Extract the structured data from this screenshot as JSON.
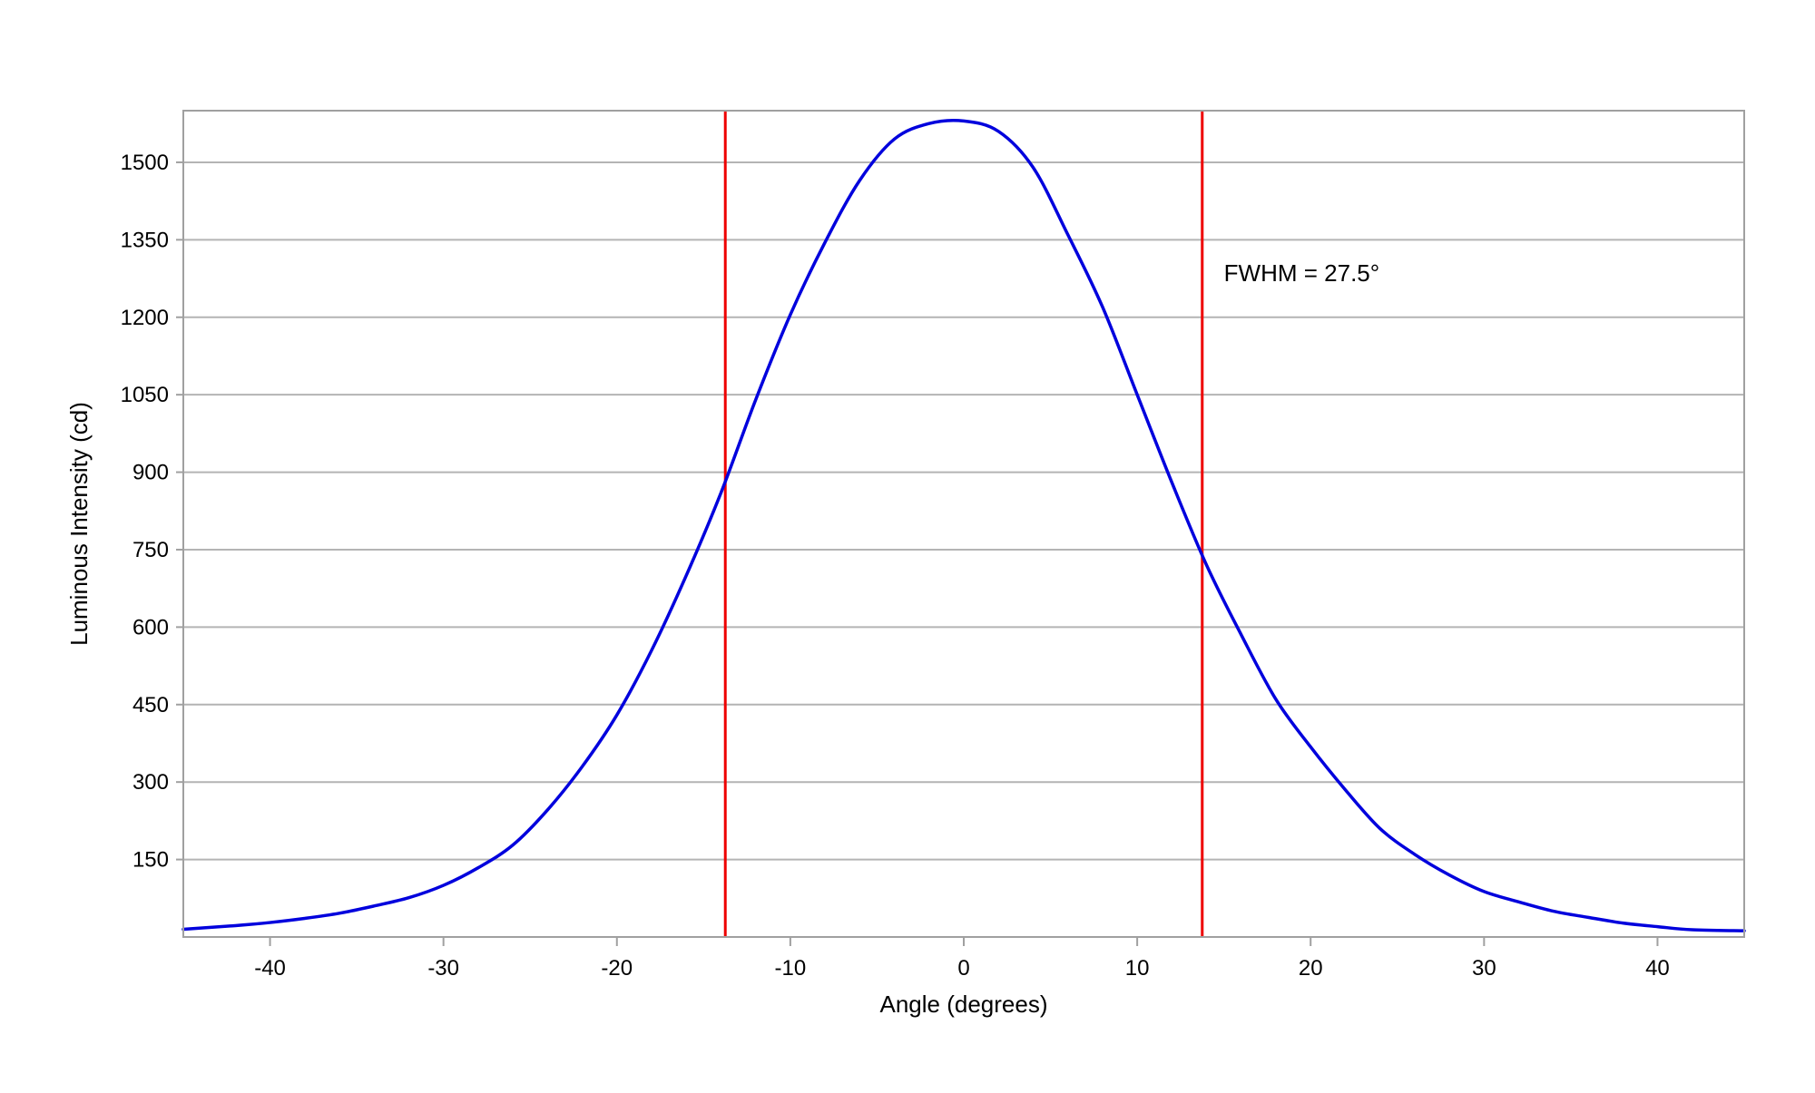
{
  "chart_data": {
    "type": "line",
    "title": "",
    "xlabel": "Angle (degrees)",
    "ylabel": "Luminous Intensity (cd)",
    "xlim": [
      -45,
      45
    ],
    "ylim": [
      0,
      1600
    ],
    "grid": "horizontal",
    "xticks": [
      "-40",
      "-30",
      "-20",
      "-10",
      "0",
      "10",
      "20",
      "30",
      "40"
    ],
    "yticks": [
      "150",
      "300",
      "450",
      "600",
      "750",
      "900",
      "1050",
      "1200",
      "1350",
      "1500"
    ],
    "series": [
      {
        "color": "#0000dd",
        "x": [
          -45,
          -42,
          -40,
          -38,
          -36,
          -34,
          -32,
          -30,
          -28,
          -26,
          -24,
          -22,
          -20,
          -18,
          -16,
          -14,
          -12,
          -10,
          -8,
          -6,
          -4,
          -2,
          0,
          2,
          4,
          6,
          8,
          10,
          12,
          14,
          16,
          18,
          20,
          22,
          24,
          26,
          28,
          30,
          32,
          34,
          36,
          38,
          40,
          42,
          45
        ],
        "y": [
          15,
          22,
          28,
          36,
          46,
          60,
          76,
          100,
          134,
          178,
          246,
          330,
          430,
          555,
          700,
          860,
          1040,
          1205,
          1345,
          1465,
          1545,
          1575,
          1580,
          1560,
          1490,
          1360,
          1220,
          1050,
          880,
          720,
          585,
          460,
          368,
          285,
          210,
          160,
          120,
          88,
          68,
          50,
          38,
          27,
          20,
          14,
          12
        ]
      }
    ],
    "vlines": [
      {
        "x": -13.75,
        "color": "#ee0000"
      },
      {
        "x": 13.75,
        "color": "#ee0000"
      }
    ],
    "annotations": [
      {
        "text": "FWHM = 27.5°",
        "x": 15,
        "y": 1270
      }
    ]
  }
}
